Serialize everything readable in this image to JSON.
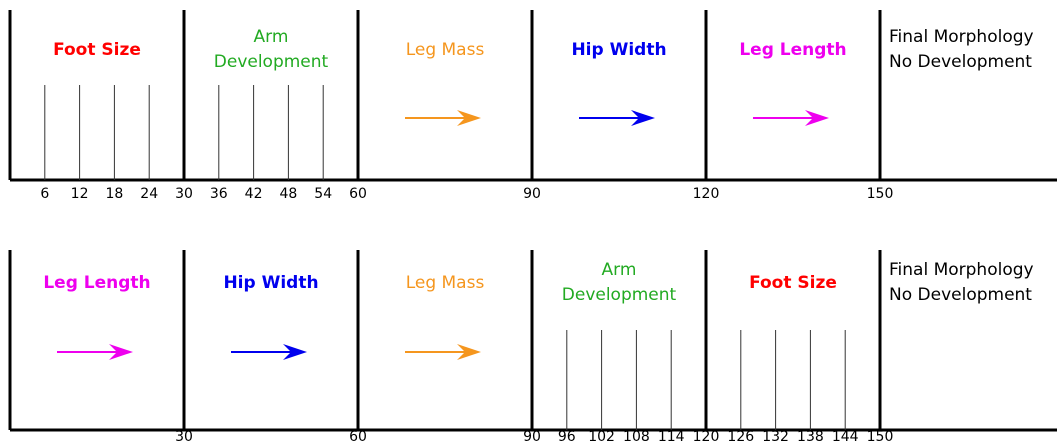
{
  "timelines": [
    {
      "segments": [
        {
          "label_lines": [
            "Foot Size"
          ],
          "color": "#ff0000",
          "bold": true,
          "marker": "lines"
        },
        {
          "label_lines": [
            "Arm",
            "Development"
          ],
          "color": "#22aa22",
          "bold": false,
          "marker": "lines"
        },
        {
          "label_lines": [
            "Leg Mass"
          ],
          "color": "#f5961e",
          "bold": false,
          "marker": "arrow"
        },
        {
          "label_lines": [
            "Hip Width"
          ],
          "color": "#0000ee",
          "bold": true,
          "marker": "arrow"
        },
        {
          "label_lines": [
            "Leg Length"
          ],
          "color": "#ee00ee",
          "bold": true,
          "marker": "arrow"
        },
        {
          "label_lines": [
            "Final Morphology",
            "No Development"
          ],
          "color": "#000000",
          "bold": false,
          "marker": "none"
        }
      ],
      "ticks": [
        6,
        12,
        18,
        24,
        30,
        36,
        42,
        48,
        54,
        60,
        90,
        120,
        150
      ]
    },
    {
      "segments": [
        {
          "label_lines": [
            "Leg Length"
          ],
          "color": "#ee00ee",
          "bold": true,
          "marker": "arrow"
        },
        {
          "label_lines": [
            "Hip Width"
          ],
          "color": "#0000ee",
          "bold": true,
          "marker": "arrow"
        },
        {
          "label_lines": [
            "Leg Mass"
          ],
          "color": "#f5961e",
          "bold": false,
          "marker": "arrow"
        },
        {
          "label_lines": [
            "Arm",
            "Development"
          ],
          "color": "#22aa22",
          "bold": false,
          "marker": "lines"
        },
        {
          "label_lines": [
            "Foot Size"
          ],
          "color": "#ff0000",
          "bold": true,
          "marker": "lines"
        },
        {
          "label_lines": [
            "Final Morphology",
            "No Development"
          ],
          "color": "#000000",
          "bold": false,
          "marker": "none"
        }
      ],
      "ticks": [
        30,
        60,
        90,
        96,
        102,
        108,
        114,
        120,
        126,
        132,
        138,
        144,
        150
      ]
    }
  ]
}
